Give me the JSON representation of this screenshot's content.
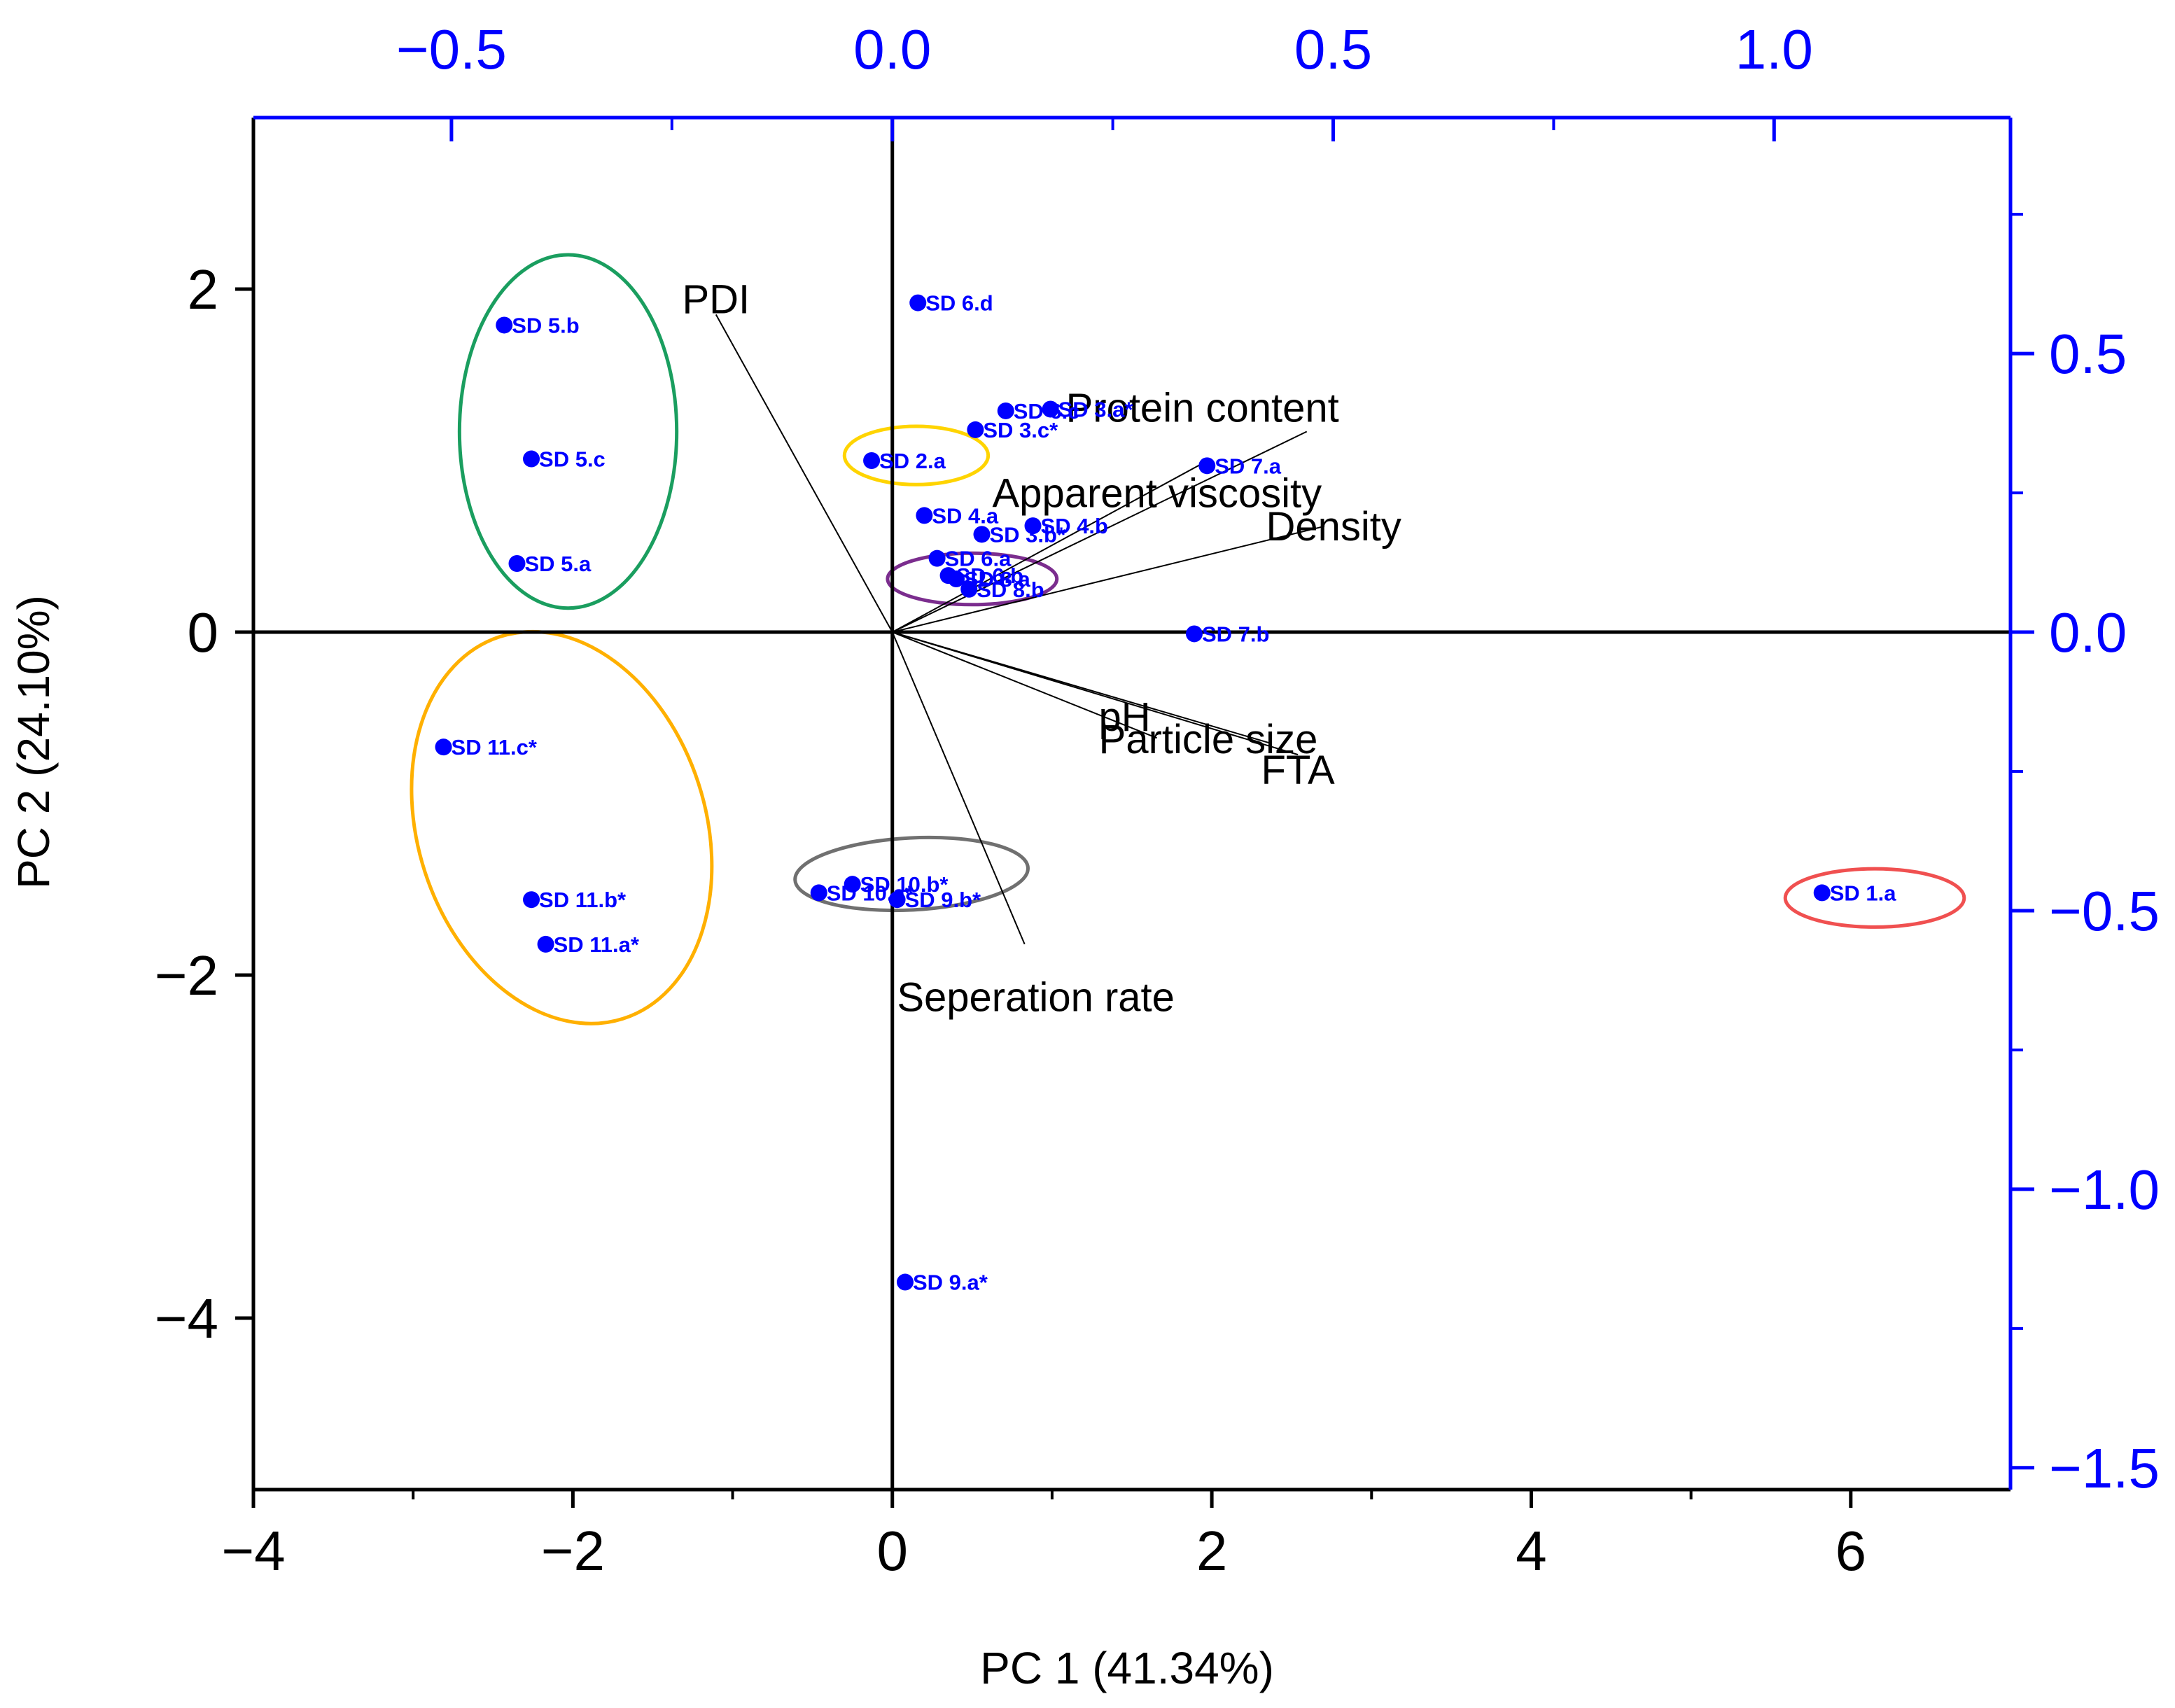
{
  "chart_data": {
    "type": "scatter",
    "subtype": "pca-biplot",
    "xlabel": "PC 1 (41.34%)",
    "ylabel": "PC 2 (24.10%)",
    "xlim": [
      -4,
      7
    ],
    "ylim": [
      -5,
      3
    ],
    "x_ticks": [
      -4,
      -2,
      0,
      2,
      4,
      6
    ],
    "x_tick_labels": [
      "−4",
      "−2",
      "0",
      "2",
      "4",
      "6"
    ],
    "y_ticks": [
      -4,
      -2,
      0,
      2
    ],
    "y_tick_labels": [
      "−4",
      "−2",
      "0",
      "2"
    ],
    "top_axis": {
      "lim": [
        -0.7246,
        1.2681
      ],
      "ticks": [
        -0.5,
        0,
        0.5,
        1
      ],
      "tick_labels": [
        "−0.5",
        "0.0",
        "0.5",
        "1.0"
      ]
    },
    "right_axis": {
      "lim": [
        -1.5392,
        0.9236
      ],
      "ticks": [
        -1.5,
        -1,
        -0.5,
        0,
        0.5
      ],
      "tick_labels": [
        "−1.5",
        "−1.0",
        "−0.5",
        "0.0",
        "0.5"
      ]
    },
    "grid": false,
    "point_color": "#0000ff",
    "points": [
      {
        "label": "SD 5.b",
        "x": -2.43,
        "y": 1.79
      },
      {
        "label": "SD 5.c",
        "x": -2.26,
        "y": 1.01
      },
      {
        "label": "SD 5.a",
        "x": -2.35,
        "y": 0.4
      },
      {
        "label": "SD 6.d",
        "x": 0.16,
        "y": 1.92
      },
      {
        "label": "SD 2.a",
        "x": -0.13,
        "y": 1.0
      },
      {
        "label": "SD 3.a*",
        "x": 0.99,
        "y": 1.3
      },
      {
        "label": "SD 6.c",
        "x": 0.71,
        "y": 1.29
      },
      {
        "label": "SD 3.c*",
        "x": 0.52,
        "y": 1.18
      },
      {
        "label": "SD 7.a",
        "x": 1.97,
        "y": 0.97
      },
      {
        "label": "SD 4.a",
        "x": 0.2,
        "y": 0.68
      },
      {
        "label": "SD 3.b*",
        "x": 0.56,
        "y": 0.57
      },
      {
        "label": "SD 4.b",
        "x": 0.88,
        "y": 0.62
      },
      {
        "label": "SD 6.a",
        "x": 0.28,
        "y": 0.43
      },
      {
        "label": "SD 6.b",
        "x": 0.35,
        "y": 0.33
      },
      {
        "label": "SD 8.a",
        "x": 0.4,
        "y": 0.31
      },
      {
        "label": "SD 8.b",
        "x": 0.48,
        "y": 0.25
      },
      {
        "label": "SD 7.b",
        "x": 1.89,
        "y": -0.01
      },
      {
        "label": "SD 11.c*",
        "x": -2.81,
        "y": -0.67
      },
      {
        "label": "SD 11.b*",
        "x": -2.26,
        "y": -1.56
      },
      {
        "label": "SD 11.a*",
        "x": -2.17,
        "y": -1.82
      },
      {
        "label": "SD 10.b*",
        "x": -0.25,
        "y": -1.47
      },
      {
        "label": "SD 10.a*",
        "x": -0.46,
        "y": -1.52
      },
      {
        "label": "SD 9.b*",
        "x": 0.03,
        "y": -1.56
      },
      {
        "label": "SD 9.a*",
        "x": 0.08,
        "y": -3.79
      },
      {
        "label": "SD 1.a",
        "x": 5.82,
        "y": -1.52
      }
    ],
    "loadings_axis": "top/right",
    "loadings": [
      {
        "label": "PDI",
        "x": -0.2,
        "y": 0.57
      },
      {
        "label": "Protein content",
        "x": 0.47,
        "y": 0.36
      },
      {
        "label": "Apparent viscosity",
        "x": 0.36,
        "y": 0.31
      },
      {
        "label": "Density",
        "x": 0.49,
        "y": 0.19
      },
      {
        "label": "pH",
        "x": 0.3,
        "y": -0.19
      },
      {
        "label": "FTA",
        "x": 0.46,
        "y": -0.22
      },
      {
        "label": "Particle size",
        "x": 0.43,
        "y": -0.2
      },
      {
        "label": "Seperation rate",
        "x": 0.15,
        "y": -0.56
      }
    ],
    "clusters": [
      {
        "color": "#1a9e5f",
        "cx": -2.03,
        "cy": 1.17,
        "rx": 0.68,
        "ry": 1.03,
        "angle": 0
      },
      {
        "color": "#ffd400",
        "cx": 0.15,
        "cy": 1.03,
        "rx": 0.45,
        "ry": 0.17,
        "angle": 0
      },
      {
        "color": "#7b2d8e",
        "cx": 0.5,
        "cy": 0.31,
        "rx": 0.53,
        "ry": 0.15,
        "angle": 0
      },
      {
        "color": "#ffb000",
        "cx": -2.07,
        "cy": -1.14,
        "rx": 0.9,
        "ry": 1.17,
        "angle": -18
      },
      {
        "color": "#707070",
        "cx": 0.12,
        "cy": -1.41,
        "rx": 0.73,
        "ry": 0.21,
        "angle": -3
      },
      {
        "color": "#f05050",
        "cx": 6.15,
        "cy": -1.55,
        "rx": 0.56,
        "ry": 0.17,
        "angle": 0
      }
    ]
  },
  "colors": {
    "axis": "#000000",
    "secondary_axis": "#0000ff"
  }
}
